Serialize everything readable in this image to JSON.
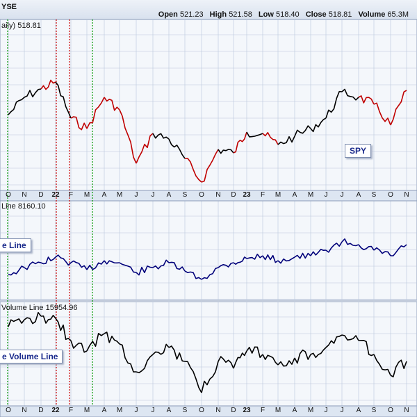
{
  "header": {
    "exchange": "YSE",
    "open_label": "Open",
    "open": "521.23",
    "high_label": "High",
    "high": "521.58",
    "low_label": "Low",
    "low": "518.40",
    "close_label": "Close",
    "close": "518.81",
    "volume_label": "Volume",
    "volume": "65.3M"
  },
  "panels": {
    "price_title": "aily) 518.81",
    "price_legend": "SPY",
    "adline_title": "Line 8160.10",
    "adline_legend": "e Line",
    "advol_title": "Volume Line 15954.96",
    "advol_legend": "e Volume Line"
  },
  "axis_labels": [
    "O",
    "N",
    "D",
    "22",
    "F",
    "M",
    "A",
    "M",
    "J",
    "J",
    "A",
    "S",
    "O",
    "N",
    "D",
    "23",
    "F",
    "M",
    "A",
    "M",
    "J",
    "J",
    "A",
    "S",
    "O",
    "N"
  ],
  "colors": {
    "up": "#000000",
    "down": "#c00000",
    "adline": "#00007a",
    "advol": "#000000",
    "grid": "#b9c6dc",
    "panel_bg": "#f4f7fb",
    "axis_band": "#dde6f2",
    "vline_red": "#cc0000",
    "vline_green": "#009900"
  },
  "chart_data": [
    {
      "type": "line",
      "title": "SPY",
      "series": [
        {
          "name": "SPY",
          "x": [
            "O",
            "N",
            "D",
            "22",
            "F",
            "M",
            "A",
            "M",
            "J",
            "J",
            "A",
            "S",
            "O",
            "N",
            "D",
            "23",
            "F",
            "M",
            "A",
            "M",
            "J",
            "J",
            "A",
            "S",
            "O",
            "N"
          ],
          "values": [
            165,
            140,
            128,
            118,
            170,
            185,
            140,
            158,
            235,
            192,
            200,
            228,
            262,
            215,
            220,
            190,
            192,
            208,
            196,
            185,
            170,
            132,
            140,
            150,
            180,
            130
          ],
          "direction": [
            "up",
            "up",
            "down",
            "up",
            "down",
            "down",
            "down",
            "down",
            "down",
            "up",
            "up",
            "down",
            "down",
            "up",
            "down",
            "up",
            "down",
            "up",
            "up",
            "up",
            "up",
            "up",
            "down",
            "down",
            "down",
            "up"
          ]
        }
      ]
    },
    {
      "type": "line",
      "title": "Line 8160.10",
      "series": [
        {
          "name": "e Line",
          "x": [
            "O",
            "N",
            "D",
            "22",
            "F",
            "M",
            "A",
            "M",
            "J",
            "J",
            "A",
            "S",
            "O",
            "N",
            "D",
            "23",
            "F",
            "M",
            "A",
            "M",
            "J",
            "J",
            "A",
            "S",
            "O",
            "N"
          ],
          "values": [
            395,
            385,
            378,
            370,
            378,
            388,
            375,
            378,
            392,
            385,
            378,
            390,
            402,
            385,
            378,
            372,
            368,
            375,
            370,
            368,
            360,
            348,
            352,
            360,
            368,
            352
          ]
        }
      ]
    },
    {
      "type": "line",
      "title": "Volume Line 15954.96",
      "series": [
        {
          "name": "e Volume Line",
          "x": [
            "O",
            "N",
            "D",
            "22",
            "F",
            "M",
            "A",
            "M",
            "J",
            "J",
            "A",
            "S",
            "O",
            "N",
            "D",
            "23",
            "F",
            "M",
            "A",
            "M",
            "J",
            "J",
            "A",
            "S",
            "O",
            "N"
          ],
          "values": [
            470,
            460,
            455,
            458,
            490,
            505,
            480,
            495,
            535,
            510,
            500,
            520,
            565,
            520,
            530,
            505,
            510,
            525,
            515,
            510,
            500,
            482,
            490,
            510,
            540,
            520
          ]
        }
      ]
    }
  ]
}
